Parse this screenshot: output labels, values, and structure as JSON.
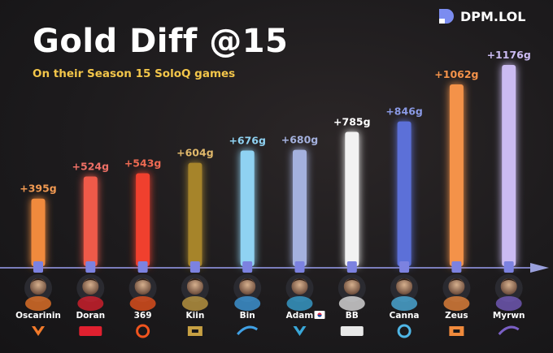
{
  "title": "Gold Diff @15",
  "subtitle": "On their Season 15 SoloQ games",
  "brand": {
    "name": "DPM.LOL"
  },
  "colors": {
    "background": "#1d1b1d",
    "subtitle": "#f3c64a",
    "axis": "#8c8fd8"
  },
  "chart_data": {
    "type": "bar",
    "categories": [
      "Oscarinin",
      "Doran",
      "369",
      "Kiin",
      "Bin",
      "Adam",
      "BB",
      "Canna",
      "Zeus",
      "Myrwn"
    ],
    "series": [
      {
        "values": [
          395,
          524,
          543,
          604,
          676,
          680,
          785,
          846,
          1062,
          1176
        ],
        "labels": [
          "+395g",
          "+524g",
          "+543g",
          "+604g",
          "+676g",
          "+680g",
          "+785g",
          "+846g",
          "+1062g",
          "+1176g"
        ],
        "colors": [
          "#f08a3c",
          "#ef5a4a",
          "#f0412d",
          "#a6842c",
          "#8fd2f2",
          "#a4b1de",
          "#f2f2f2",
          "#5b6fd8",
          "#f4924a",
          "#cbbbf2"
        ],
        "label_colors": [
          "#f29a52",
          "#ee7066",
          "#ef6a52",
          "#e0b86a",
          "#8fd2f2",
          "#a4b1de",
          "#ffffff",
          "#8a9ae6",
          "#f4924a",
          "#cbbbf2"
        ]
      }
    ],
    "teams": [
      "Fnatic",
      "T1",
      "Top Esports",
      "Gen.G",
      "Bilibili Gaming",
      "Karmine Corp",
      "G2 Esports",
      "Kwangdong Freecs",
      "Hanwha Life Esports",
      "Movistar KOI"
    ],
    "team_colors": [
      "#f27a2a",
      "#e0202f",
      "#f0541e",
      "#c7a043",
      "#40a0e4",
      "#39a7d8",
      "#e8e8e8",
      "#4fb6e6",
      "#f08a3c",
      "#7a5fc4"
    ],
    "flags": {
      "Adam": "south-korea-flag-icon"
    },
    "ylim": [
      0,
      1200
    ],
    "xlabel": "",
    "ylabel": "",
    "grid": false,
    "legend": "none"
  }
}
